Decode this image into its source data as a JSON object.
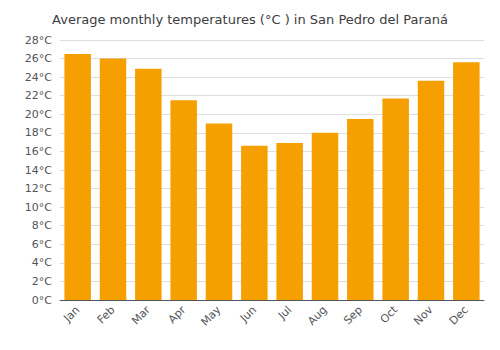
{
  "chart_data": {
    "type": "bar",
    "title": "Average monthly temperatures (°C ) in San Pedro del Paraná",
    "categories": [
      "Jan",
      "Feb",
      "Mar",
      "Apr",
      "May",
      "Jun",
      "Jul",
      "Aug",
      "Sep",
      "Oct",
      "Nov",
      "Dec"
    ],
    "values": [
      26.5,
      26.0,
      24.9,
      21.5,
      19.0,
      16.6,
      16.9,
      18.0,
      19.5,
      21.7,
      23.6,
      25.6
    ],
    "color": "#F5A000",
    "ylim": [
      0,
      28
    ],
    "yticks": [
      {
        "value": 0,
        "label": "0°C"
      },
      {
        "value": 2,
        "label": "2°C"
      },
      {
        "value": 4,
        "label": "4°C"
      },
      {
        "value": 6,
        "label": "6°C"
      },
      {
        "value": 8,
        "label": "8°C"
      },
      {
        "value": 10,
        "label": "10°C"
      },
      {
        "value": 12,
        "label": "12°C"
      },
      {
        "value": 14,
        "label": "14°C"
      },
      {
        "value": 16,
        "label": "16°C"
      },
      {
        "value": 18,
        "label": "18°C"
      },
      {
        "value": 20,
        "label": "20°C"
      },
      {
        "value": 22,
        "label": "22°C"
      },
      {
        "value": 24,
        "label": "24°C"
      },
      {
        "value": 26,
        "label": "26°C"
      },
      {
        "value": 28,
        "label": "28°C"
      }
    ],
    "grid": true
  }
}
